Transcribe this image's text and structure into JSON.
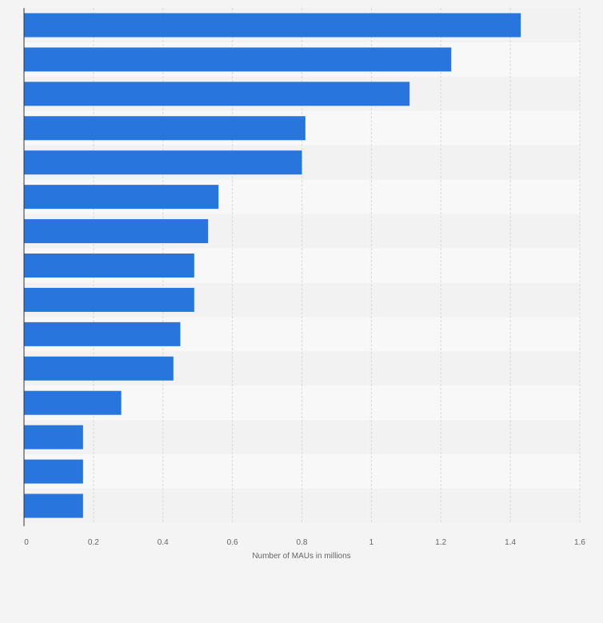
{
  "chart_data": {
    "type": "bar",
    "orientation": "horizontal",
    "categories": [
      "",
      "",
      "",
      "",
      "",
      "",
      "",
      "",
      "",
      "",
      "",
      "",
      "",
      "",
      ""
    ],
    "values": [
      1.43,
      1.23,
      1.11,
      0.81,
      0.8,
      0.56,
      0.53,
      0.49,
      0.49,
      0.45,
      0.43,
      0.28,
      0.17,
      0.17,
      0.17
    ],
    "title": "",
    "xlabel": "Number of MAUs in millions",
    "ylabel": "",
    "xlim": [
      0,
      1.6
    ],
    "x_ticks": [
      "0",
      "0.2",
      "0.4",
      "0.6",
      "0.8",
      "1",
      "1.2",
      "1.4",
      "1.6"
    ],
    "grid": true,
    "legend": "none",
    "colors": {
      "bar": "#2876dd",
      "band_dark": "#f2f2f2",
      "band_light": "#f8f8f8",
      "grid": "#d9d9d9",
      "axis": "#333333",
      "text": "#666666"
    }
  }
}
